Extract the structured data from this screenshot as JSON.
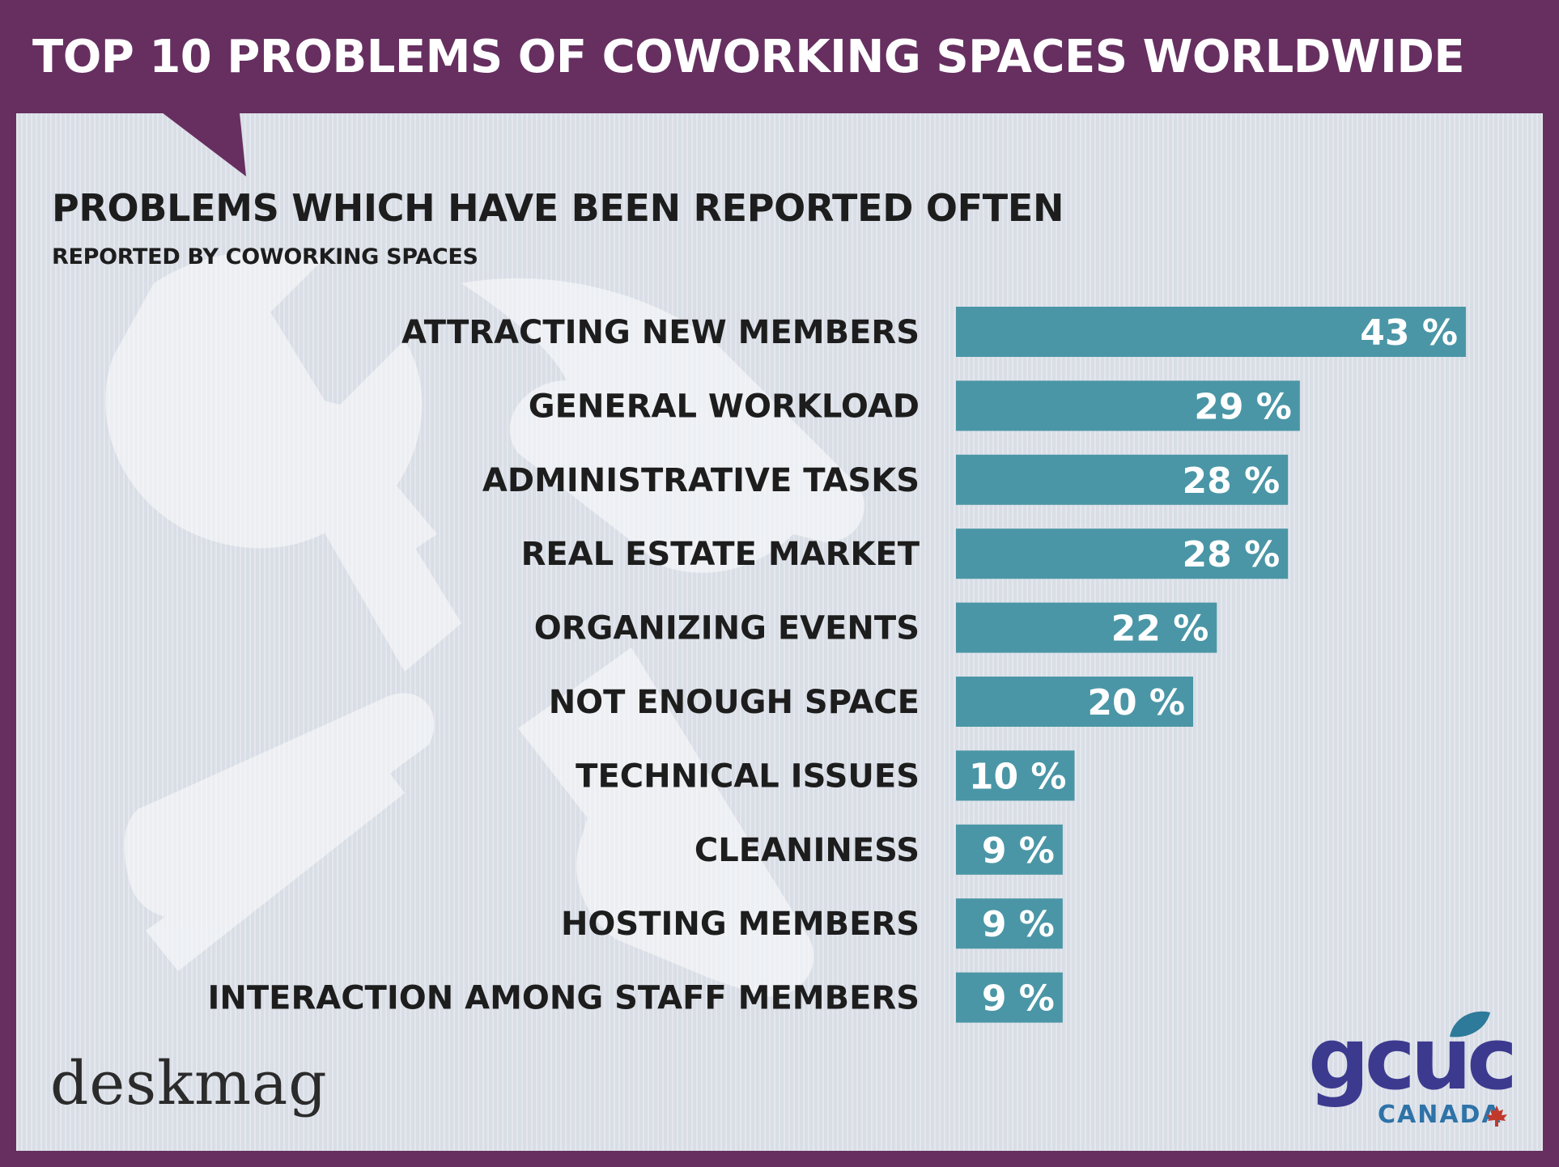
{
  "header": {
    "title": "TOP 10 PROBLEMS OF COWORKING SPACES WORLDWIDE"
  },
  "chart_data": {
    "type": "bar",
    "orientation": "horizontal",
    "title": "PROBLEMS WHICH HAVE BEEN REPORTED OFTEN",
    "subtitle": "REPORTED BY COWORKING SPACES",
    "categories": [
      "ATTRACTING NEW MEMBERS",
      "GENERAL WORKLOAD",
      "ADMINISTRATIVE TASKS",
      "REAL ESTATE MARKET",
      "ORGANIZING EVENTS",
      "NOT ENOUGH SPACE",
      "TECHNICAL ISSUES",
      "CLEANINESS",
      "HOSTING MEMBERS",
      "INTERACTION AMONG STAFF MEMBERS"
    ],
    "values": [
      43,
      29,
      28,
      28,
      22,
      20,
      10,
      9,
      9,
      9
    ],
    "value_labels": [
      "43 %",
      "29 %",
      "28 %",
      "28 %",
      "22 %",
      "20 %",
      "10 %",
      "9 %",
      "9 %",
      "9 %"
    ],
    "unit": "%",
    "bar_color": "#4a96a6",
    "grid": false,
    "legend": "none"
  },
  "logos": {
    "left": "deskmag",
    "right_main": "gcuc",
    "right_sub": "CANADA"
  },
  "colors": {
    "frame": "#662f60",
    "panel": "#d9dee6",
    "bar": "#4a96a6",
    "text": "#1d1d1d",
    "gcuc": "#3c3a8f",
    "gcuc_sub": "#2e73a8",
    "maple": "#c0392b",
    "leaf": "#2e7a9a"
  }
}
